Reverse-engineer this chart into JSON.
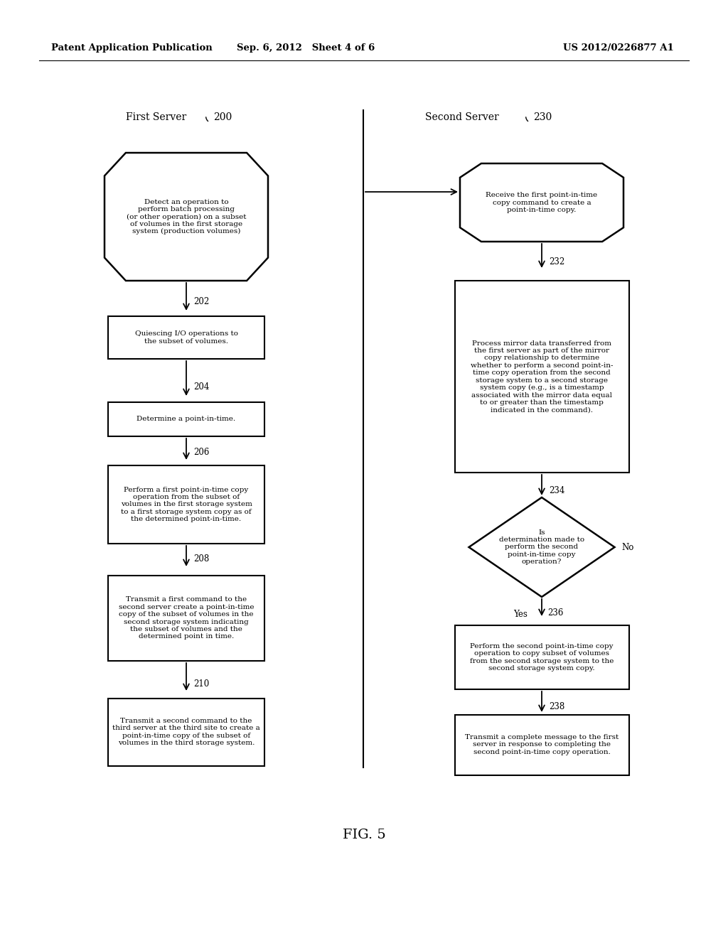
{
  "header_left": "Patent Application Publication",
  "header_mid": "Sep. 6, 2012   Sheet 4 of 6",
  "header_right": "US 2012/0226877 A1",
  "fig_label": "FIG. 5",
  "left_title": "First Server",
  "left_title_num": "200",
  "right_title": "Second Server",
  "right_title_num": "230",
  "bg_color": "#ffffff",
  "text_color": "#000000",
  "font_size": 7.5,
  "header_font_size": 9.5
}
